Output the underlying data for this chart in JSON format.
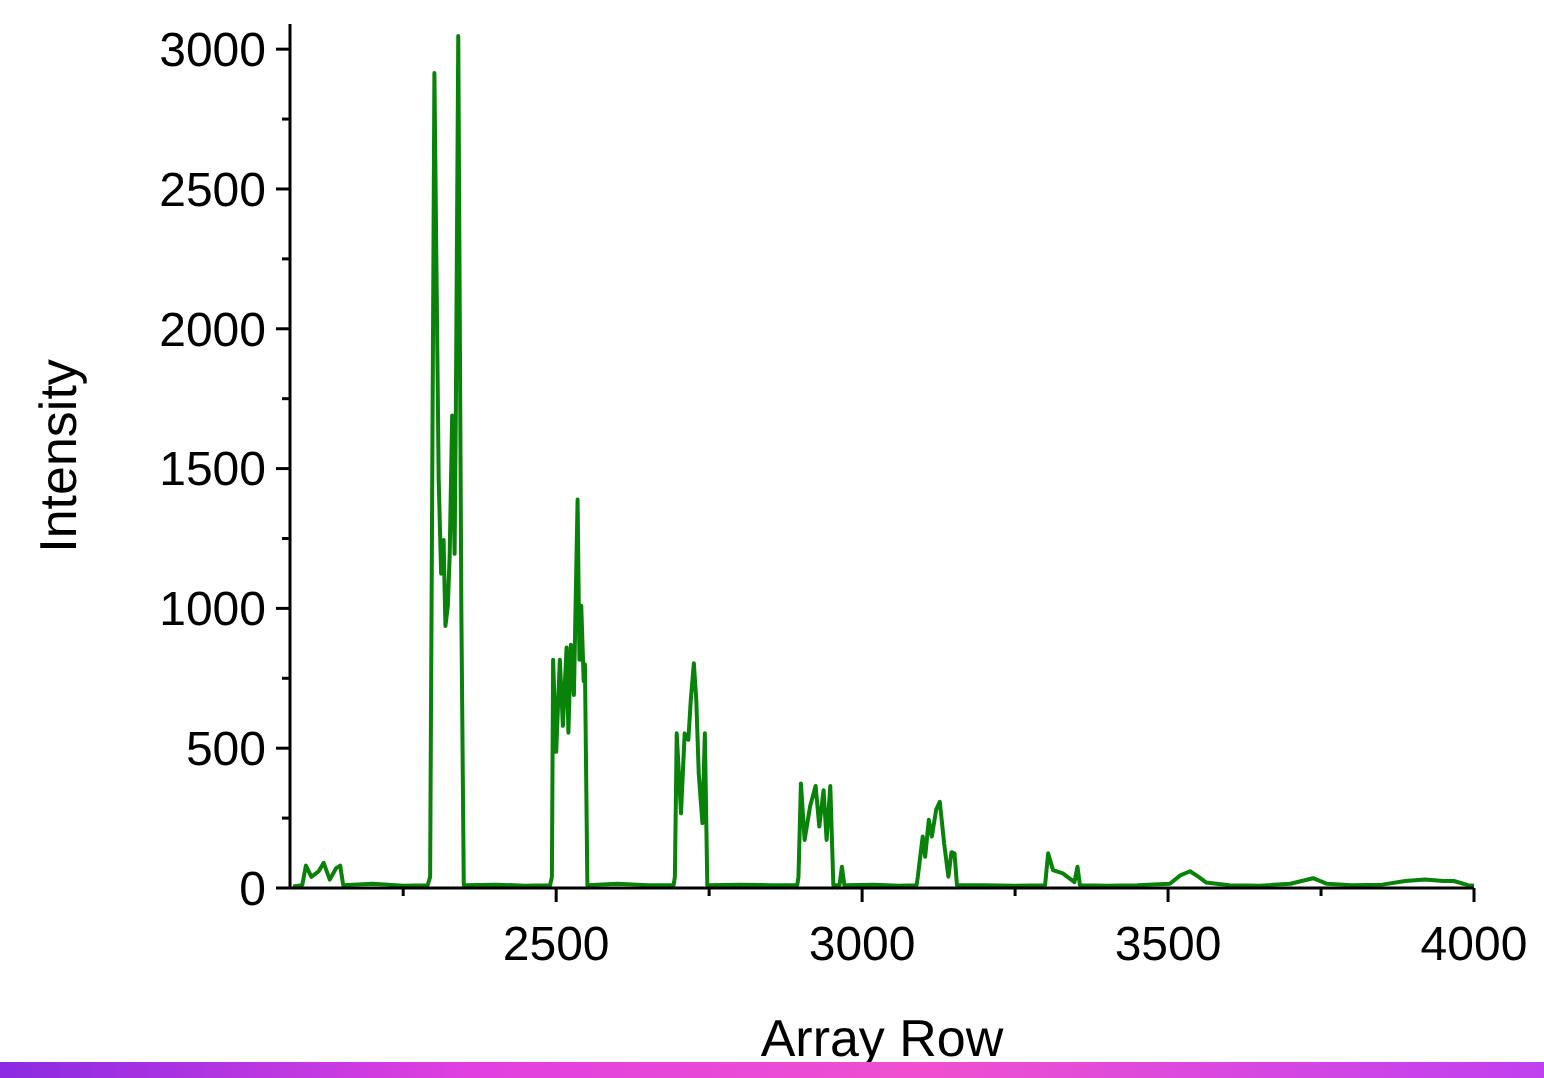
{
  "chart_data": {
    "type": "line",
    "xlabel": "Array Row",
    "ylabel": "Intensity",
    "x": [
      2070,
      2085,
      2091,
      2100,
      2112,
      2120,
      2130,
      2140,
      2147,
      2152,
      2200,
      2250,
      2290,
      2294,
      2301,
      2308,
      2312,
      2316,
      2319,
      2323,
      2326,
      2330,
      2334,
      2336,
      2340,
      2345,
      2349,
      2400,
      2450,
      2490,
      2493,
      2495,
      2500,
      2506,
      2511,
      2517,
      2520,
      2524,
      2529,
      2535,
      2538,
      2541,
      2545,
      2547,
      2551,
      2600,
      2650,
      2692,
      2694,
      2697,
      2704,
      2710,
      2716,
      2720,
      2725,
      2729,
      2733,
      2739,
      2743,
      2747,
      2800,
      2850,
      2894,
      2896,
      2900,
      2906,
      2915,
      2924,
      2930,
      2937,
      2942,
      2948,
      2953,
      2963,
      2967,
      2971,
      3020,
      3060,
      3089,
      3091,
      3099,
      3103,
      3109,
      3114,
      3121,
      3127,
      3134,
      3141,
      3146,
      3151,
      3155,
      3200,
      3250,
      3299,
      3304,
      3312,
      3328,
      3347,
      3352,
      3356,
      3400,
      3450,
      3503,
      3520,
      3536,
      3550,
      3562,
      3600,
      3650,
      3700,
      3737,
      3760,
      3800,
      3850,
      3888,
      3920,
      3950,
      3967,
      3990,
      4000
    ],
    "series": [
      {
        "color": "#088208",
        "values": [
          5,
          10,
          80,
          40,
          60,
          90,
          30,
          70,
          80,
          10,
          15,
          8,
          10,
          40,
          2915,
          1460,
          1124,
          1245,
          937,
          1010,
          1195,
          1690,
          1195,
          1690,
          3047,
          1000,
          10,
          12,
          8,
          10,
          40,
          816,
          487,
          816,
          580,
          860,
          555,
          870,
          690,
          1389,
          816,
          1009,
          740,
          800,
          10,
          15,
          10,
          10,
          40,
          553,
          267,
          553,
          530,
          672,
          804,
          672,
          410,
          232,
          553,
          10,
          12,
          10,
          10,
          40,
          374,
          172,
          292,
          365,
          220,
          350,
          172,
          365,
          10,
          10,
          76,
          10,
          12,
          8,
          10,
          40,
          184,
          112,
          244,
          184,
          280,
          308,
          160,
          40,
          128,
          124,
          10,
          10,
          8,
          10,
          124,
          64,
          52,
          21,
          76,
          10,
          8,
          10,
          15,
          45,
          60,
          40,
          20,
          10,
          8,
          15,
          35,
          15,
          10,
          12,
          25,
          30,
          25,
          25,
          10,
          8
        ]
      }
    ],
    "xlim": [
      2065,
      4000
    ],
    "xticks": [
      {
        "value": 2250,
        "label": null
      },
      2500,
      {
        "value": 2750,
        "label": null
      },
      3000,
      {
        "value": 3250,
        "label": null
      },
      3500,
      {
        "value": 3750,
        "label": null
      },
      4000
    ],
    "ylim": [
      0,
      3090
    ],
    "yticks": [
      0,
      {
        "value": 250,
        "label": null
      },
      500,
      {
        "value": 750,
        "label": null
      },
      1000,
      {
        "value": 1250,
        "label": null
      },
      1500,
      {
        "value": 1750,
        "label": null
      },
      2000,
      {
        "value": 2250,
        "label": null
      },
      2500,
      {
        "value": 2750,
        "label": null
      },
      3000
    ],
    "grid": false,
    "marker": "none",
    "line_style": "solid"
  }
}
